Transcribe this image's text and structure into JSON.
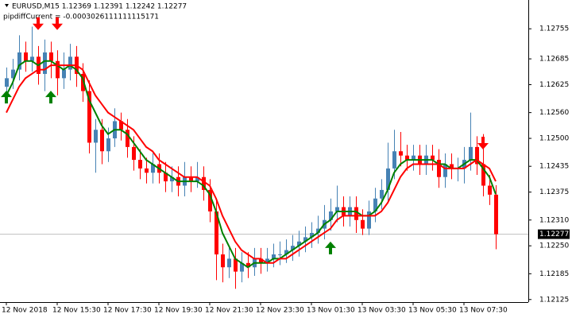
{
  "chart_data": {
    "type": "candlestick",
    "title": "EURUSD,M15  1.12369 1.12391 1.12242 1.12277",
    "subtitle": "pipdiffCurrent = -0.0003026111111115171",
    "categories": [
      "12 Nov 2018",
      null,
      null,
      null,
      null,
      null,
      null,
      null,
      "12 Nov 15:30",
      null,
      null,
      null,
      null,
      null,
      null,
      null,
      "12 Nov 17:30",
      null,
      null,
      null,
      null,
      null,
      null,
      null,
      "12 Nov 19:30",
      null,
      null,
      null,
      null,
      null,
      null,
      null,
      "12 Nov 21:30",
      null,
      null,
      null,
      null,
      null,
      null,
      null,
      "12 Nov 23:30",
      null,
      null,
      null,
      null,
      null,
      null,
      null,
      "13 Nov 01:30",
      null,
      null,
      null,
      null,
      null,
      null,
      null,
      "13 Nov 03:30",
      null,
      null,
      null,
      null,
      null,
      null,
      null,
      "13 Nov 05:30",
      null,
      null,
      null,
      null,
      null,
      null,
      null,
      "13 Nov 07:30",
      null,
      null,
      null,
      null,
      null
    ],
    "open": [
      1.1262,
      1.1264,
      1.1266,
      1.127,
      1.1268,
      1.1269,
      1.1265,
      1.127,
      1.1268,
      1.1264,
      1.1266,
      1.1269,
      1.1265,
      1.1261,
      1.1249,
      1.1252,
      1.1247,
      1.125,
      1.1254,
      1.1252,
      1.1248,
      1.1245,
      1.1243,
      1.1242,
      1.1244,
      1.1242,
      1.124,
      1.1241,
      1.1239,
      1.1241,
      1.124,
      1.1241,
      1.1238,
      1.1233,
      1.1223,
      1.122,
      1.1222,
      1.1219,
      1.1221,
      1.122,
      1.1222,
      1.1221,
      1.1222,
      1.1223,
      1.1223,
      1.1224,
      1.1225,
      1.1226,
      1.1227,
      1.1228,
      1.1229,
      1.1231,
      1.1233,
      1.1234,
      1.1232,
      1.1234,
      1.1231,
      1.1229,
      1.1233,
      1.1236,
      1.1238,
      1.1243,
      1.1247,
      1.1246,
      1.1245,
      1.1246,
      1.1244,
      1.1246,
      1.1245,
      1.1241,
      1.1244,
      1.1243,
      1.1243,
      1.1245,
      1.1248,
      1.1244,
      1.1239,
      1.12369
    ],
    "high": [
      1.12665,
      1.12685,
      1.1274,
      1.12725,
      1.1276,
      1.12715,
      1.1273,
      1.12725,
      1.12705,
      1.127,
      1.1272,
      1.12715,
      1.12675,
      1.12635,
      1.12545,
      1.12545,
      1.12525,
      1.1257,
      1.1256,
      1.12545,
      1.12505,
      1.12475,
      1.12455,
      1.12465,
      1.12465,
      1.12445,
      1.12435,
      1.12435,
      1.12445,
      1.12435,
      1.12445,
      1.12435,
      1.12405,
      1.12355,
      1.12255,
      1.12245,
      1.12245,
      1.12235,
      1.12235,
      1.12245,
      1.12245,
      1.12245,
      1.12255,
      1.1226,
      1.12265,
      1.12275,
      1.12285,
      1.12295,
      1.12305,
      1.1232,
      1.12345,
      1.1236,
      1.1239,
      1.12365,
      1.12365,
      1.12365,
      1.12335,
      1.12355,
      1.12385,
      1.12405,
      1.1249,
      1.1252,
      1.12515,
      1.12485,
      1.12485,
      1.12485,
      1.12485,
      1.12485,
      1.12475,
      1.12465,
      1.12465,
      1.12455,
      1.1248,
      1.1256,
      1.12505,
      1.1251,
      1.12415,
      1.12391
    ],
    "low": [
      1.12595,
      1.12615,
      1.12635,
      1.12655,
      1.12655,
      1.12625,
      1.1261,
      1.1264,
      1.126,
      1.12615,
      1.12635,
      1.1262,
      1.12585,
      1.12465,
      1.1242,
      1.1244,
      1.12445,
      1.1248,
      1.12495,
      1.12455,
      1.12425,
      1.12405,
      1.12395,
      1.12395,
      1.12395,
      1.12375,
      1.12375,
      1.12365,
      1.12365,
      1.12375,
      1.12385,
      1.12355,
      1.12305,
      1.1217,
      1.12165,
      1.12175,
      1.1215,
      1.12165,
      1.12175,
      1.1218,
      1.12185,
      1.1219,
      1.122,
      1.12205,
      1.1221,
      1.12215,
      1.12225,
      1.12235,
      1.12245,
      1.12255,
      1.12265,
      1.12285,
      1.12305,
      1.12295,
      1.12295,
      1.1228,
      1.12275,
      1.12275,
      1.12305,
      1.12335,
      1.12355,
      1.12405,
      1.12435,
      1.12425,
      1.12425,
      1.12415,
      1.12415,
      1.12425,
      1.12385,
      1.12385,
      1.12405,
      1.124,
      1.12395,
      1.12425,
      1.12415,
      1.12365,
      1.12345,
      1.12242
    ],
    "close": [
      1.1264,
      1.1266,
      1.127,
      1.1268,
      1.1269,
      1.1265,
      1.127,
      1.1268,
      1.1264,
      1.1266,
      1.1269,
      1.1265,
      1.1261,
      1.1249,
      1.1252,
      1.1247,
      1.125,
      1.1254,
      1.1252,
      1.1248,
      1.1245,
      1.1243,
      1.1242,
      1.1244,
      1.1242,
      1.124,
      1.1241,
      1.1239,
      1.1241,
      1.124,
      1.1241,
      1.1238,
      1.1233,
      1.1223,
      1.122,
      1.1222,
      1.1219,
      1.1221,
      1.122,
      1.1222,
      1.1221,
      1.1222,
      1.1223,
      1.1223,
      1.1224,
      1.1225,
      1.1226,
      1.1227,
      1.1228,
      1.1229,
      1.1231,
      1.1233,
      1.1234,
      1.1232,
      1.1234,
      1.1231,
      1.1229,
      1.1233,
      1.1236,
      1.1238,
      1.1243,
      1.1247,
      1.1246,
      1.1245,
      1.1246,
      1.1244,
      1.1246,
      1.1245,
      1.1241,
      1.1244,
      1.1243,
      1.1243,
      1.1245,
      1.1248,
      1.1244,
      1.1239,
      1.12369,
      1.12277
    ],
    "up_color": "#4682b4",
    "down_color": "#ff0000",
    "series": [
      {
        "color": "#008000",
        "values": [
          1.126,
          1.1263,
          1.1267,
          1.1268,
          1.1268,
          1.1267,
          1.1268,
          1.1268,
          1.1267,
          1.1266,
          1.1267,
          1.1266,
          1.1264,
          1.1259,
          1.1256,
          1.1253,
          1.1251,
          1.1252,
          1.1252,
          1.1251,
          1.1249,
          1.1247,
          1.1245,
          1.1244,
          1.1243,
          1.1242,
          1.1241,
          1.124,
          1.124,
          1.124,
          1.124,
          1.1239,
          1.1237,
          1.1233,
          1.1228,
          1.1225,
          1.1222,
          1.1221,
          1.122,
          1.1221,
          1.1221,
          1.1221,
          1.1222,
          1.1222,
          1.1223,
          1.1224,
          1.1225,
          1.1226,
          1.1227,
          1.1228,
          1.123,
          1.1231,
          1.1233,
          1.1233,
          1.1233,
          1.1233,
          1.1232,
          1.1232,
          1.1233,
          1.1235,
          1.1238,
          1.1242,
          1.1244,
          1.1245,
          1.1245,
          1.1245,
          1.1245,
          1.1245,
          1.1244,
          1.1244,
          1.1243,
          1.1243,
          1.1244,
          1.1245,
          1.1245,
          1.1243,
          1.1241,
          1.1237
        ]
      },
      {
        "color": "#ff0000",
        "values": [
          1.1256,
          1.1259,
          1.1262,
          1.1264,
          1.1265,
          1.1266,
          1.1266,
          1.1267,
          1.1267,
          1.1267,
          1.1267,
          1.1267,
          1.1266,
          1.1263,
          1.126,
          1.1258,
          1.1256,
          1.1255,
          1.1254,
          1.1253,
          1.1252,
          1.125,
          1.1248,
          1.1247,
          1.1245,
          1.1244,
          1.1243,
          1.1242,
          1.1241,
          1.1241,
          1.1241,
          1.124,
          1.1239,
          1.1236,
          1.1232,
          1.1229,
          1.1226,
          1.1224,
          1.1223,
          1.1222,
          1.1222,
          1.1221,
          1.1221,
          1.1222,
          1.1222,
          1.1223,
          1.1224,
          1.1225,
          1.1226,
          1.1227,
          1.1228,
          1.1229,
          1.1231,
          1.1232,
          1.1232,
          1.1232,
          1.1232,
          1.1232,
          1.1232,
          1.1233,
          1.1235,
          1.1238,
          1.1241,
          1.1243,
          1.1244,
          1.1244,
          1.1244,
          1.1244,
          1.1244,
          1.1243,
          1.1243,
          1.1243,
          1.1243,
          1.1244,
          1.1245,
          1.1244,
          1.1243,
          1.124
        ]
      }
    ],
    "arrows_up": {
      "color": "#008000",
      "points": [
        {
          "index": 0,
          "value": 1.12596
        },
        {
          "index": 7,
          "value": 1.12596
        },
        {
          "index": 51,
          "value": 1.12245
        }
      ]
    },
    "arrows_down": {
      "color": "#ff0000",
      "points": [
        {
          "index": 5,
          "value": 1.12767
        },
        {
          "index": 8,
          "value": 1.12767
        },
        {
          "index": 75,
          "value": 1.12489
        }
      ]
    },
    "ylim": [
      1.12119,
      1.12822
    ],
    "yticks": [
      1.12125,
      1.12185,
      {
        "value": 1.1225,
        "label": "1.12250"
      },
      {
        "value": 1.1231,
        "label": "1.12310"
      },
      1.12375,
      1.12435,
      {
        "value": 1.125,
        "label": "1.12500"
      },
      {
        "value": 1.1256,
        "label": "1.12560"
      },
      1.12625,
      1.12685,
      1.12755
    ],
    "current_price": 1.12277,
    "current_line_color": "#c0c0c0"
  }
}
